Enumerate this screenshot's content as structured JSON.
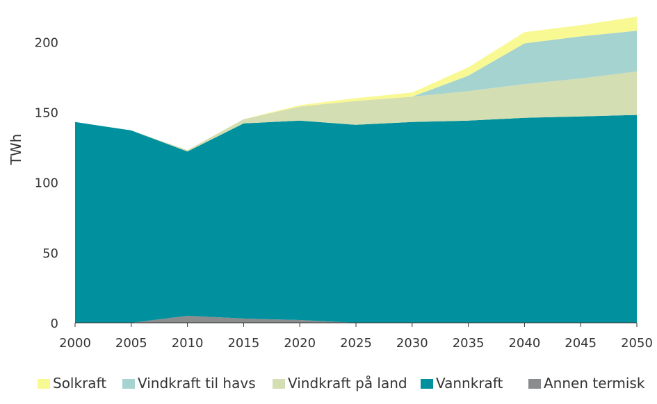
{
  "chart_data": {
    "type": "area",
    "stacked": true,
    "title": "",
    "xlabel": "",
    "ylabel": "TWh",
    "x": [
      2000,
      2005,
      2010,
      2015,
      2020,
      2025,
      2030,
      2035,
      2040,
      2045,
      2050
    ],
    "xlim": [
      2000,
      2050
    ],
    "ylim": [
      0,
      220
    ],
    "yticks": [
      0,
      50,
      100,
      150,
      200
    ],
    "grid": false,
    "legend_position": "bottom",
    "series": [
      {
        "name": "Annen termisk",
        "color": "#8a8c8e",
        "values": [
          0,
          0,
          5,
          3,
          2,
          0,
          0,
          0,
          0,
          0,
          0
        ]
      },
      {
        "name": "Vannkraft",
        "color": "#00909e",
        "values": [
          143,
          137,
          117,
          139,
          142,
          141,
          143,
          144,
          146,
          147,
          148
        ]
      },
      {
        "name": "Vindkraft på land",
        "color": "#d3deb2",
        "values": [
          0,
          0,
          1,
          3,
          10,
          17,
          18,
          21,
          24,
          27,
          31
        ]
      },
      {
        "name": "Vindkraft til havs",
        "color": "#a5d3d0",
        "values": [
          0,
          0,
          0,
          0,
          0,
          0,
          0,
          11,
          29,
          30,
          29
        ]
      },
      {
        "name": "Solkraft",
        "color": "#f9f994",
        "values": [
          0,
          0,
          0,
          0,
          1,
          2,
          3,
          6,
          8,
          8,
          10
        ]
      }
    ],
    "legend_order": [
      "Solkraft",
      "Vindkraft til havs",
      "Vindkraft på land",
      "Vannkraft",
      "Annen termisk"
    ]
  }
}
